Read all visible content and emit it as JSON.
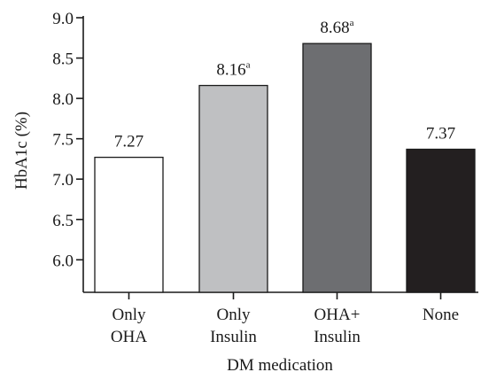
{
  "chart_data": {
    "type": "bar",
    "categories": [
      [
        "Only",
        "OHA"
      ],
      [
        "Only",
        "Insulin"
      ],
      [
        "OHA+",
        "Insulin"
      ],
      [
        "None"
      ]
    ],
    "values": [
      7.27,
      8.16,
      8.68,
      7.37
    ],
    "data_labels": [
      "7.27",
      "8.16",
      "8.68",
      "7.37"
    ],
    "data_label_superscripts": [
      "",
      "a",
      "a",
      ""
    ],
    "bar_colors": [
      "#ffffff",
      "#bfc0c2",
      "#6d6e71",
      "#231f20"
    ],
    "ylim": [
      5.6,
      9.0
    ],
    "yticks": [
      "6.0",
      "6.5",
      "7.0",
      "7.5",
      "8.0",
      "8.5",
      "9.0"
    ],
    "xlabel": "DM medication",
    "ylabel": "HbA1c (%)",
    "grid": false,
    "legend": "none"
  }
}
